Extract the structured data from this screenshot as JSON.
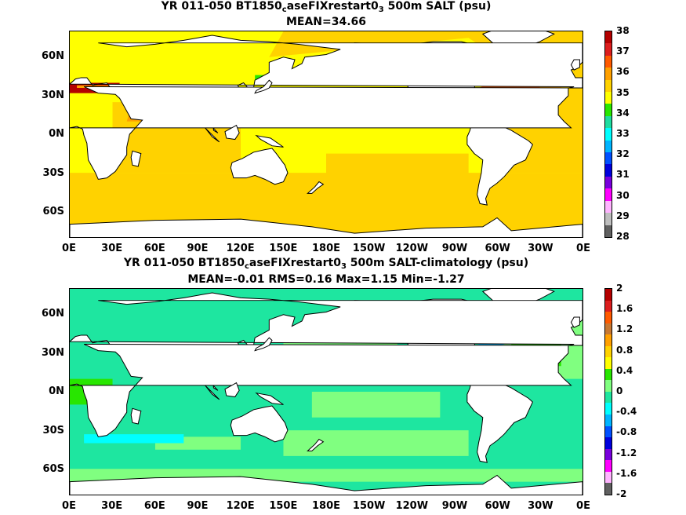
{
  "panels": [
    {
      "title_pre": "YR 011-050 BT1850",
      "title_sub_c": "c",
      "title_mid": "aseFIXrestart0",
      "title_sub_3": "3",
      "title_post": " 500m SALT (psu)",
      "subtitle": "MEAN=34.66",
      "colorbar_labels": [
        "38",
        "37",
        "36",
        "35",
        "34",
        "33",
        "32",
        "31",
        "30",
        "29",
        "28"
      ],
      "colorbar_colors": [
        "#b40000",
        "#dc1e1e",
        "#ff5a00",
        "#ffa000",
        "#ffd200",
        "#ffff00",
        "#28e600",
        "#1edca0",
        "#00ffff",
        "#00b4ff",
        "#0050ff",
        "#0000dc",
        "#7800dc",
        "#ff00ff",
        "#ffb4ff",
        "#bebebe",
        "#606060"
      ],
      "base_color": "#ffd200",
      "ocean_color": "#ffff00"
    },
    {
      "title_pre": "YR 011-050 BT1850",
      "title_sub_c": "c",
      "title_mid": "aseFIXrestart0",
      "title_sub_3": "3",
      "title_post": " 500m SALT-climatology (psu)",
      "subtitle": "MEAN=-0.01   RMS=0.16   Max=1.15   Min=-1.27",
      "colorbar_labels": [
        "2",
        "1.6",
        "1.2",
        "0.8",
        "0.4",
        "0",
        "-0.4",
        "-0.8",
        "-1.2",
        "-1.6",
        "-2"
      ],
      "colorbar_colors": [
        "#b40000",
        "#dc1e1e",
        "#ff5a00",
        "#c87832",
        "#ffa000",
        "#ffd200",
        "#ffff00",
        "#28e600",
        "#80ff80",
        "#1ee6a0",
        "#00ffff",
        "#00b4ff",
        "#0050ff",
        "#0000dc",
        "#7800dc",
        "#ff00ff",
        "#ffb4ff",
        "#606060"
      ],
      "base_color": "#80ff80",
      "ocean_color": "#1ee6a0"
    }
  ],
  "x_ticks": [
    "0E",
    "30E",
    "60E",
    "90E",
    "120E",
    "150E",
    "180E",
    "150W",
    "120W",
    "90W",
    "60W",
    "30W",
    "0E"
  ],
  "y_ticks": [
    "60N",
    "30N",
    "0N",
    "30S",
    "60S"
  ],
  "land_color": "#ffffff"
}
